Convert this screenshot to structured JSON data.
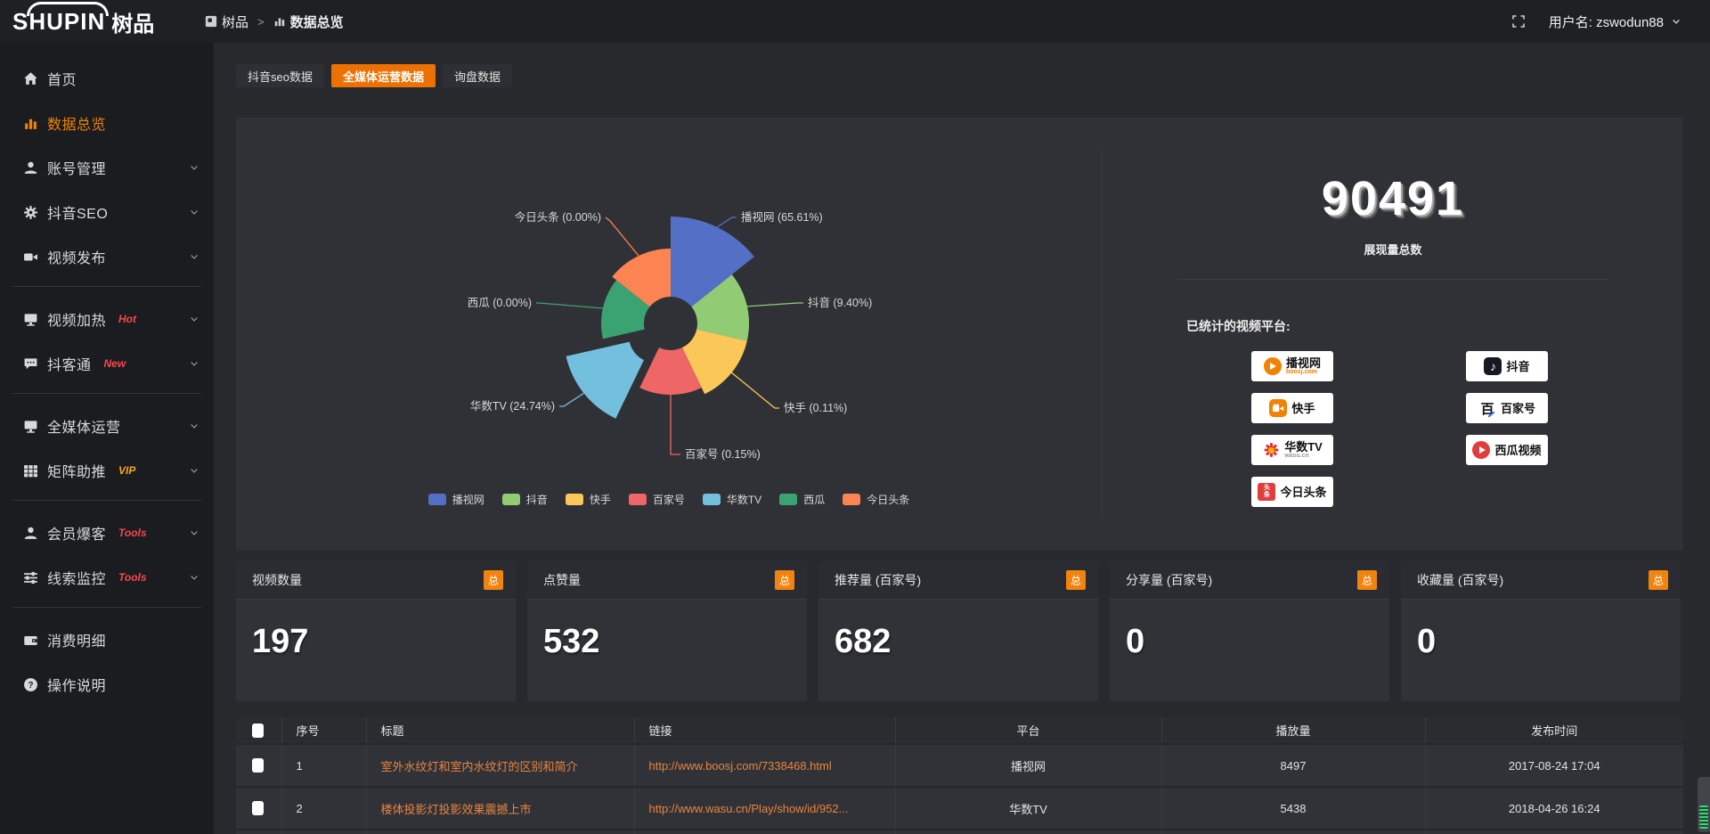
{
  "topbar": {
    "logo_main": "SHUPIN",
    "logo_sub": "树品",
    "breadcrumb": {
      "root": "树品",
      "sep": ">",
      "current": "数据总览"
    },
    "user": "用户名: zswodun88"
  },
  "tabs": [
    {
      "label": "抖音seo数据"
    },
    {
      "label": "全媒体运营数据"
    },
    {
      "label": "询盘数据"
    }
  ],
  "sidebar": {
    "items": [
      {
        "label": "首页"
      },
      {
        "label": "数据总览"
      },
      {
        "label": "账号管理"
      },
      {
        "label": "抖音SEO"
      },
      {
        "label": "视频发布"
      },
      {
        "label": "视频加热",
        "badge": "Hot"
      },
      {
        "label": "抖客通",
        "badge": "New"
      },
      {
        "label": "全媒体运营"
      },
      {
        "label": "矩阵助推",
        "badge": "VIP"
      },
      {
        "label": "会员爆客",
        "badge": "Tools"
      },
      {
        "label": "线索监控",
        "badge": "Tools"
      },
      {
        "label": "消费明细"
      },
      {
        "label": "操作说明"
      }
    ]
  },
  "chart_data": {
    "type": "pie",
    "subtype": "nightingale-rose-donut",
    "unit": "%",
    "items": [
      {
        "name": "播视网",
        "value": 65.61,
        "color": "#5470c6"
      },
      {
        "name": "抖音",
        "value": 9.4,
        "color": "#91cc75"
      },
      {
        "name": "快手",
        "value": 0.11,
        "color": "#fac858"
      },
      {
        "name": "百家号",
        "value": 0.15,
        "color": "#ee6666"
      },
      {
        "name": "华数TV",
        "value": 24.74,
        "color": "#73c0de"
      },
      {
        "name": "西瓜",
        "value": 0.0,
        "color": "#3ba272"
      },
      {
        "name": "今日头条",
        "value": 0.0,
        "color": "#fc8452"
      }
    ],
    "legend_position": "bottom"
  },
  "summary": {
    "total": "90491",
    "total_label": "展现量总数",
    "platforms_label": "已统计的视频平台:",
    "platforms": [
      {
        "label": "播视网",
        "sub": "boosj.com"
      },
      {
        "label": "抖音"
      },
      {
        "label": "快手"
      },
      {
        "label": "百家号"
      },
      {
        "label": "华数TV",
        "sub": "wasu.cn"
      },
      {
        "label": "西瓜视频"
      },
      {
        "label": "今日头条"
      }
    ]
  },
  "cards": [
    {
      "label": "视频数量",
      "badge": "总",
      "value": "197"
    },
    {
      "label": "点赞量",
      "badge": "总",
      "value": "532"
    },
    {
      "label": "推荐量 (百家号)",
      "badge": "总",
      "value": "682"
    },
    {
      "label": "分享量 (百家号)",
      "badge": "总",
      "value": "0"
    },
    {
      "label": "收藏量 (百家号)",
      "badge": "总",
      "value": "0"
    }
  ],
  "table": {
    "headers": [
      "序号",
      "标题",
      "链接",
      "平台",
      "播放量",
      "发布时间"
    ],
    "rows": [
      {
        "seq": "1",
        "title": "室外水纹灯和室内水纹灯的区别和简介",
        "link": "http://www.boosj.com/7338468.html",
        "platform": "播视网",
        "plays": "8497",
        "time": "2017-08-24 17:04"
      },
      {
        "seq": "2",
        "title": "楼体投影灯投影效果震撼上市",
        "link": "http://www.wasu.cn/Play/show/id/952...",
        "platform": "华数TV",
        "plays": "5438",
        "time": "2018-04-26 16:24"
      }
    ]
  }
}
